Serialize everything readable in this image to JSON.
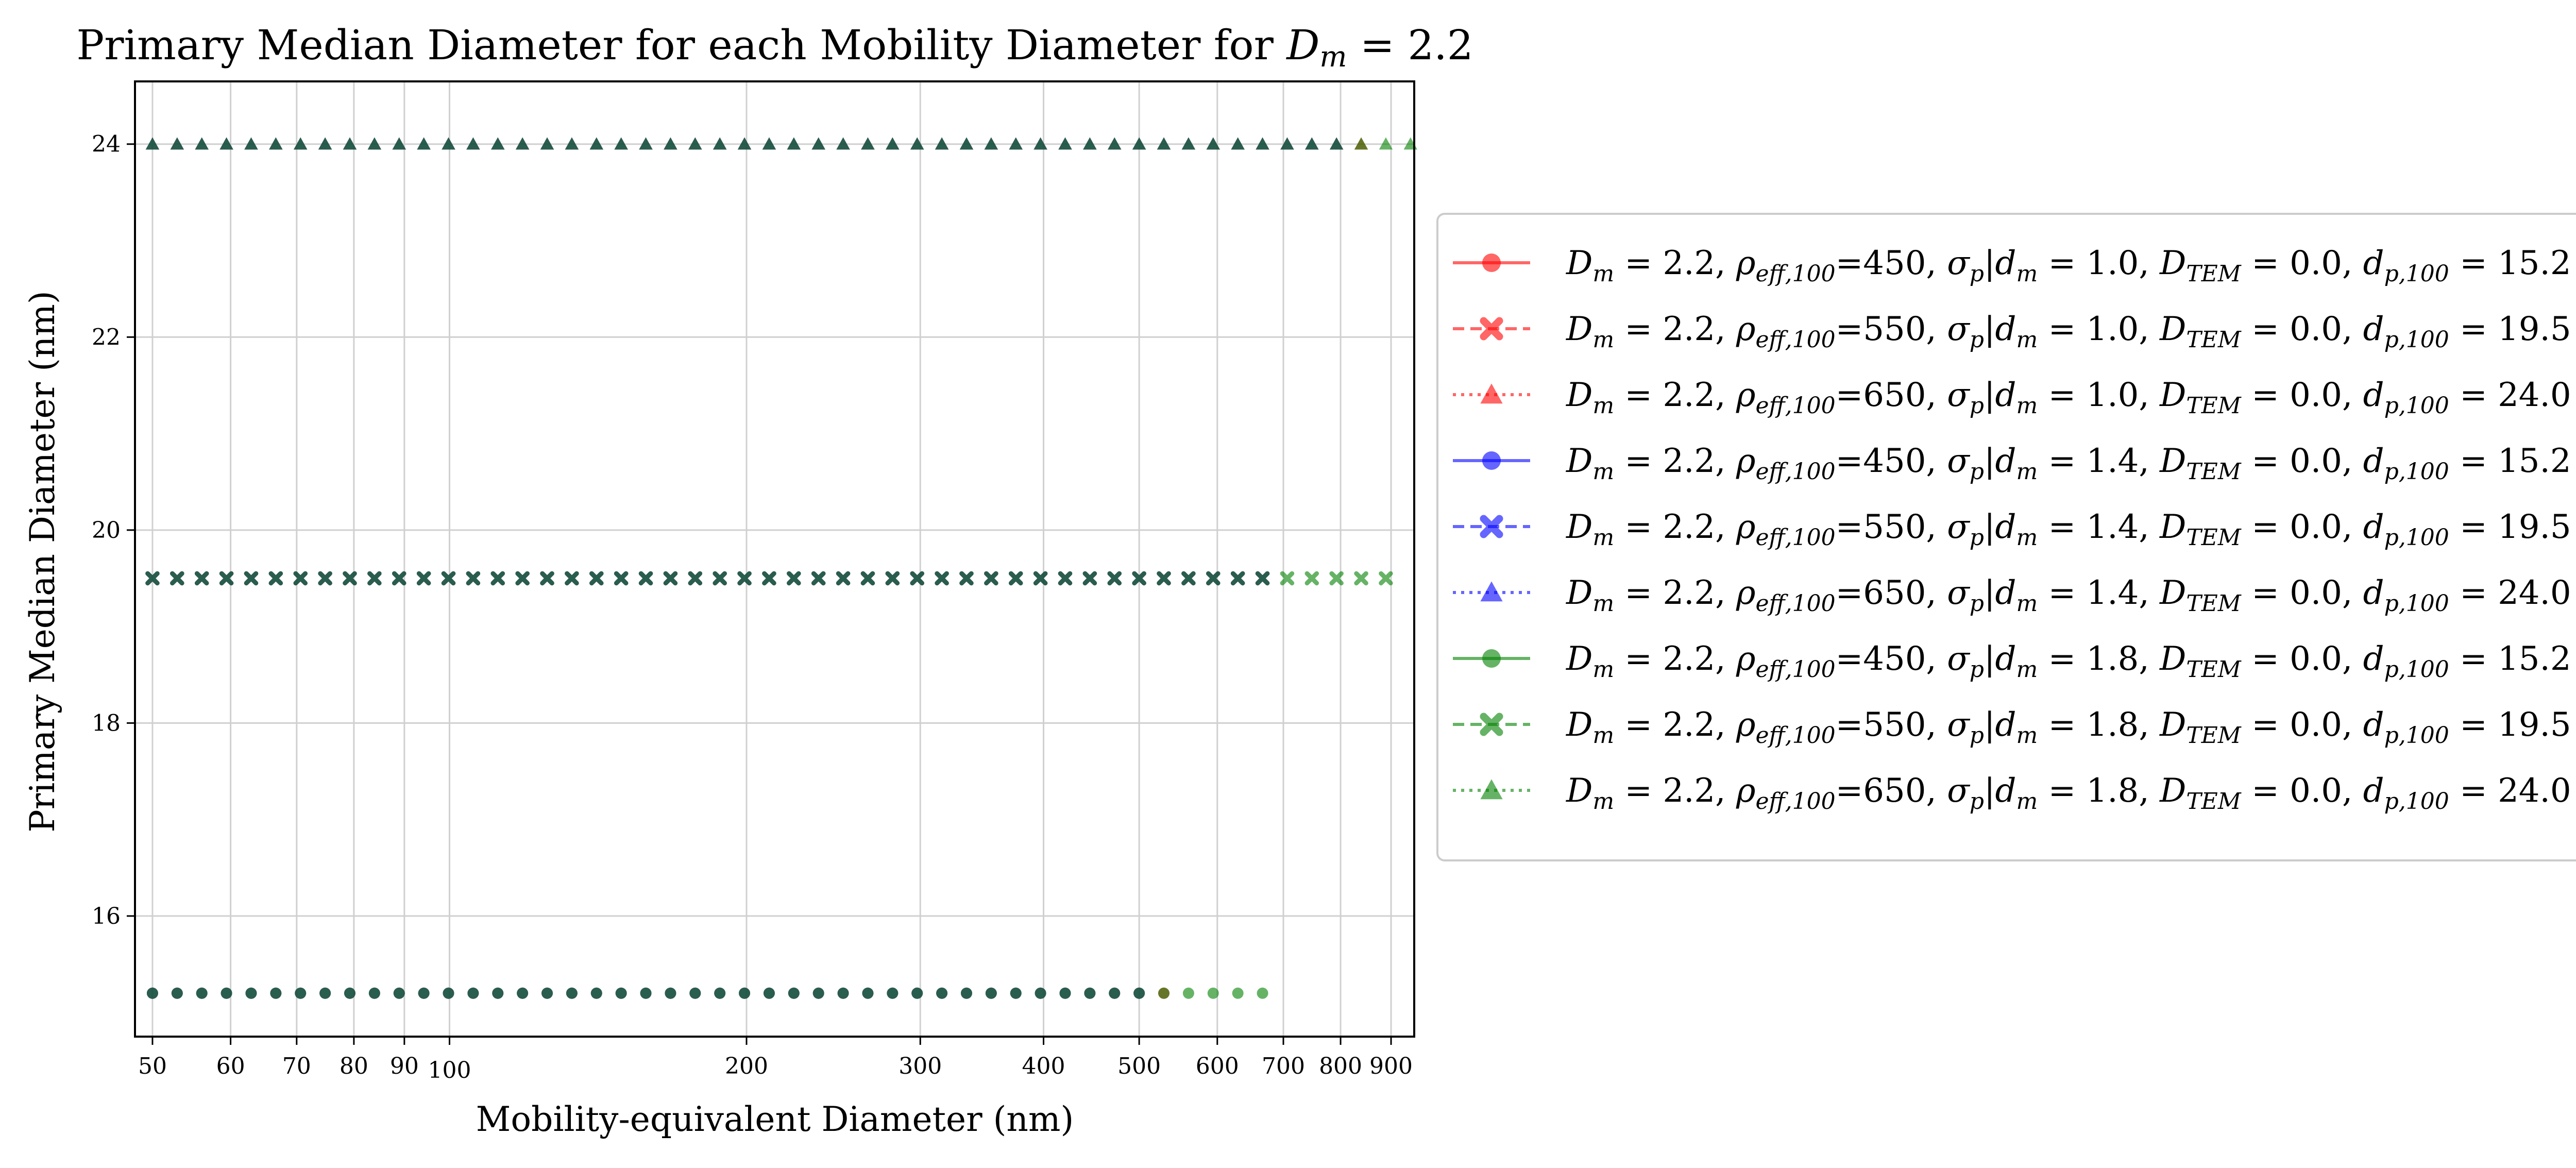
{
  "chart_data": {
    "type": "scatter",
    "title": "Primary Median Diameter for each Mobility Diameter for D_m = 2.2",
    "title_parts": {
      "main": "Primary Median Diameter for each Mobility Diameter for ",
      "math_var": "D",
      "math_sub": "m",
      "math_eq": " = 2.2"
    },
    "xlabel": "Mobility-equivalent Diameter (nm)",
    "ylabel": "Primary Median Diameter (nm)",
    "xscale": "log",
    "xlim": [
      48,
      950
    ],
    "ylim": [
      14.75,
      24.65
    ],
    "grid": true,
    "legend_position": "outside-right",
    "xticks": [
      {
        "value": 50,
        "label": "50"
      },
      {
        "value": 60,
        "label": "60"
      },
      {
        "value": 70,
        "label": "70"
      },
      {
        "value": 80,
        "label": "80"
      },
      {
        "value": 90,
        "label": "90"
      },
      {
        "value": 100,
        "label": "100"
      },
      {
        "value": 200,
        "label": "200"
      },
      {
        "value": 300,
        "label": "300"
      },
      {
        "value": 400,
        "label": "400"
      },
      {
        "value": 500,
        "label": "500"
      },
      {
        "value": 600,
        "label": "600"
      },
      {
        "value": 700,
        "label": "700"
      },
      {
        "value": 800,
        "label": "800"
      },
      {
        "value": 900,
        "label": "900"
      }
    ],
    "yticks": [
      {
        "value": 16,
        "label": "16"
      },
      {
        "value": 18,
        "label": "18"
      },
      {
        "value": 20,
        "label": "20"
      },
      {
        "value": 22,
        "label": "22"
      },
      {
        "value": 24,
        "label": "24"
      }
    ],
    "colors": {
      "red": "#ff0000",
      "blue": "#0000ff",
      "green": "#008000",
      "overlap": "#1e5c46"
    },
    "series": [
      {
        "name": "D_m = 2.2, ρ_eff,100=450, σ_p|d_m = 1.0, D_TEM = 0.0, d_p,100 = 15.2",
        "color": "#ff0000",
        "marker": "circle",
        "linestyle": "solid",
        "y": 15.2,
        "x_range": [
          50,
          550
        ]
      },
      {
        "name": "D_m = 2.2, ρ_eff,100=550, σ_p|d_m = 1.0, D_TEM = 0.0, d_p,100 = 19.5",
        "color": "#ff0000",
        "marker": "x",
        "linestyle": "dashed",
        "y": 19.5,
        "x_range": [
          50,
          700
        ]
      },
      {
        "name": "D_m = 2.2, ρ_eff,100=650, σ_p|d_m = 1.0, D_TEM = 0.0, d_p,100 = 24.0",
        "color": "#ff0000",
        "marker": "triangle",
        "linestyle": "dotted",
        "y": 24.0,
        "x_range": [
          50,
          850
        ]
      },
      {
        "name": "D_m = 2.2, ρ_eff,100=450, σ_p|d_m = 1.4, D_TEM = 0.0, d_p,100 = 15.2",
        "color": "#0000ff",
        "marker": "circle",
        "linestyle": "solid",
        "y": 15.2,
        "x_range": [
          50,
          520
        ]
      },
      {
        "name": "D_m = 2.2, ρ_eff,100=550, σ_p|d_m = 1.4, D_TEM = 0.0, d_p,100 = 19.5",
        "color": "#0000ff",
        "marker": "x",
        "linestyle": "dashed",
        "y": 19.5,
        "x_range": [
          50,
          670
        ]
      },
      {
        "name": "D_m = 2.2, ρ_eff,100=650, σ_p|d_m = 1.4, D_TEM = 0.0, d_p,100 = 24.0",
        "color": "#0000ff",
        "marker": "triangle",
        "linestyle": "dotted",
        "y": 24.0,
        "x_range": [
          50,
          820
        ]
      },
      {
        "name": "D_m = 2.2, ρ_eff,100=450, σ_p|d_m = 1.8, D_TEM = 0.0, d_p,100 = 15.2",
        "color": "#008000",
        "marker": "circle",
        "linestyle": "solid",
        "y": 15.2,
        "x_range": [
          50,
          700
        ]
      },
      {
        "name": "D_m = 2.2, ρ_eff,100=550, σ_p|d_m = 1.8, D_TEM = 0.0, d_p,100 = 19.5",
        "color": "#008000",
        "marker": "x",
        "linestyle": "dashed",
        "y": 19.5,
        "x_range": [
          50,
          900
        ]
      },
      {
        "name": "D_m = 2.2, ρ_eff,100=650, σ_p|d_m = 1.8, D_TEM = 0.0, d_p,100 = 24.0",
        "color": "#008000",
        "marker": "triangle",
        "linestyle": "dotted",
        "y": 24.0,
        "x_range": [
          50,
          950
        ]
      }
    ],
    "legend": [
      {
        "rho": "450",
        "sigma": "1.0",
        "dp": "15.2"
      },
      {
        "rho": "550",
        "sigma": "1.0",
        "dp": "19.5"
      },
      {
        "rho": "650",
        "sigma": "1.0",
        "dp": "24.0"
      },
      {
        "rho": "450",
        "sigma": "1.4",
        "dp": "15.2"
      },
      {
        "rho": "550",
        "sigma": "1.4",
        "dp": "19.5"
      },
      {
        "rho": "650",
        "sigma": "1.4",
        "dp": "24.0"
      },
      {
        "rho": "450",
        "sigma": "1.8",
        "dp": "15.2"
      },
      {
        "rho": "550",
        "sigma": "1.8",
        "dp": "19.5"
      },
      {
        "rho": "650",
        "sigma": "1.8",
        "dp": "24.0"
      }
    ],
    "legend_fixed": {
      "dm": "2.2",
      "dtem": "0.0"
    }
  }
}
